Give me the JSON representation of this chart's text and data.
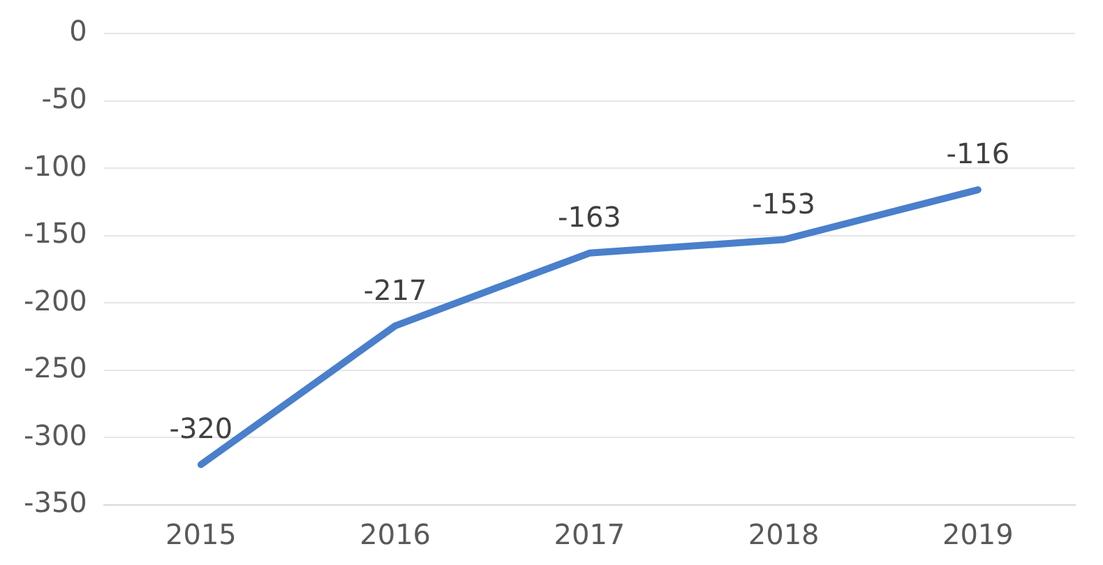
{
  "chart_data": {
    "type": "line",
    "categories": [
      "2015",
      "2016",
      "2017",
      "2018",
      "2019"
    ],
    "series": [
      {
        "color": "#4a7fcb",
        "values": [
          -320,
          -217,
          -163,
          -153,
          -116
        ]
      }
    ],
    "ylim": [
      -350,
      0
    ],
    "yticks": [
      -350,
      -300,
      -250,
      -200,
      -150,
      -100,
      -50,
      0
    ],
    "grid": "y",
    "data_labels": true,
    "marker": "none",
    "line_style": "solid",
    "legend": false
  }
}
